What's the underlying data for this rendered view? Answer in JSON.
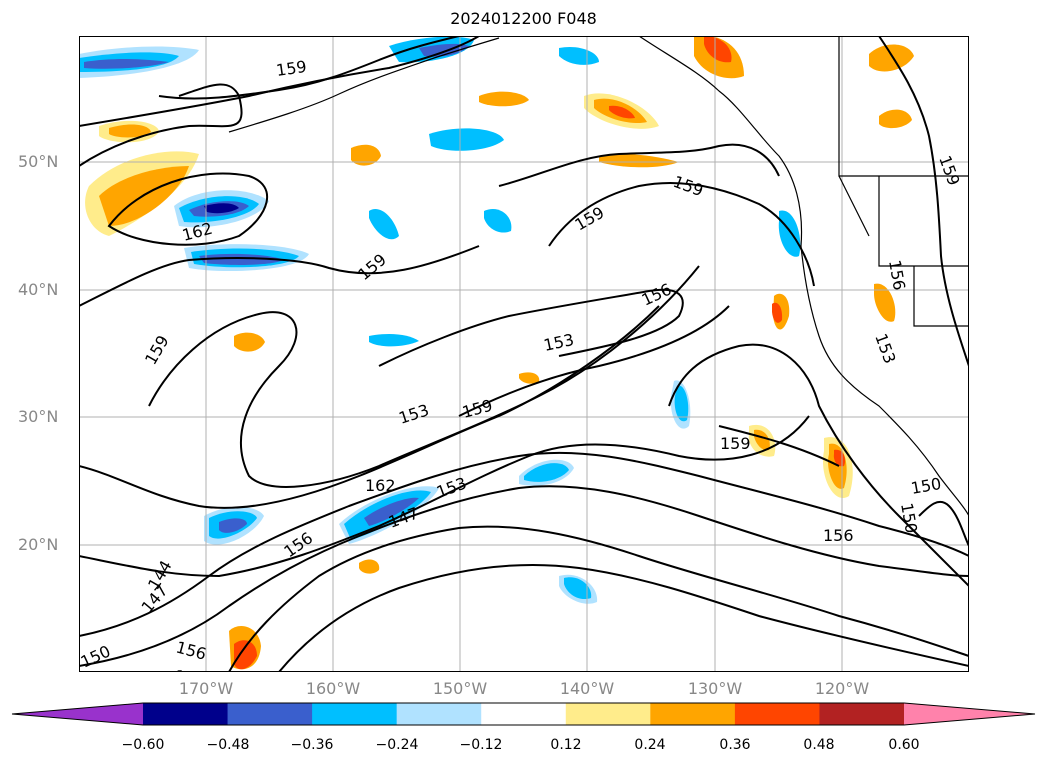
{
  "title": "2024012200 F048",
  "lat_labels": [
    "50°N",
    "40°N",
    "30°N",
    "20°N"
  ],
  "lon_labels": [
    "170°W",
    "160°W",
    "150°W",
    "140°W",
    "130°W",
    "120°W"
  ],
  "contour_labels": [
    "159",
    "162",
    "159",
    "159",
    "159",
    "159",
    "156",
    "153",
    "153",
    "159",
    "162",
    "153",
    "147",
    "156",
    "144",
    "147",
    "150",
    "156",
    "159",
    "156",
    "150",
    "150",
    "153",
    "156",
    "159",
    "159"
  ],
  "colorbar": {
    "ticks": [
      "−0.60",
      "−0.48",
      "−0.36",
      "−0.24",
      "−0.12",
      "0.12",
      "0.24",
      "0.36",
      "0.48",
      "0.60"
    ],
    "colors": [
      "#9932cc",
      "#00008b",
      "#3a5fcd",
      "#00bfff",
      "#b0e2ff",
      "#ffffff",
      "#ffec8b",
      "#ffa500",
      "#ff4500",
      "#b22222",
      "#ff82ab"
    ]
  }
}
